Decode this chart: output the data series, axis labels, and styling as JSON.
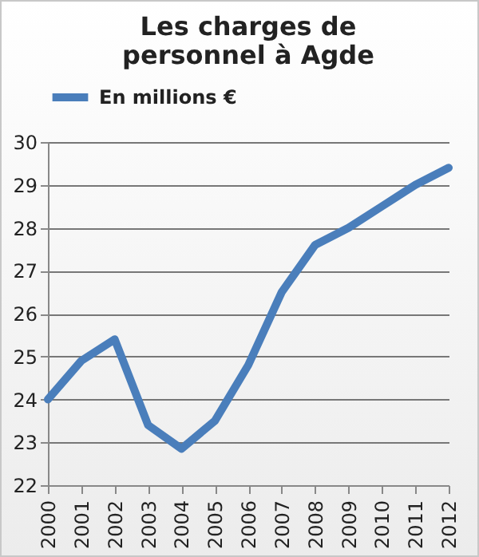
{
  "chart_data": {
    "type": "line",
    "title": "Les charges de personnel à Agde",
    "categories": [
      "2000",
      "2001",
      "2002",
      "2003",
      "2004",
      "2005",
      "2006",
      "2007",
      "2008",
      "2009",
      "2010",
      "2011",
      "2012"
    ],
    "series": [
      {
        "name": "En millions €",
        "color": "#4a7ebb",
        "values": [
          24.0,
          24.9,
          25.4,
          23.4,
          22.85,
          23.5,
          24.8,
          26.5,
          27.6,
          28.0,
          28.5,
          29.0,
          29.4
        ]
      }
    ],
    "ylim": [
      22,
      30
    ],
    "yticks": [
      22,
      23,
      24,
      25,
      26,
      27,
      28,
      29,
      30
    ],
    "grid": "y",
    "legend": "top",
    "marker": "none",
    "line_style": "solid"
  }
}
